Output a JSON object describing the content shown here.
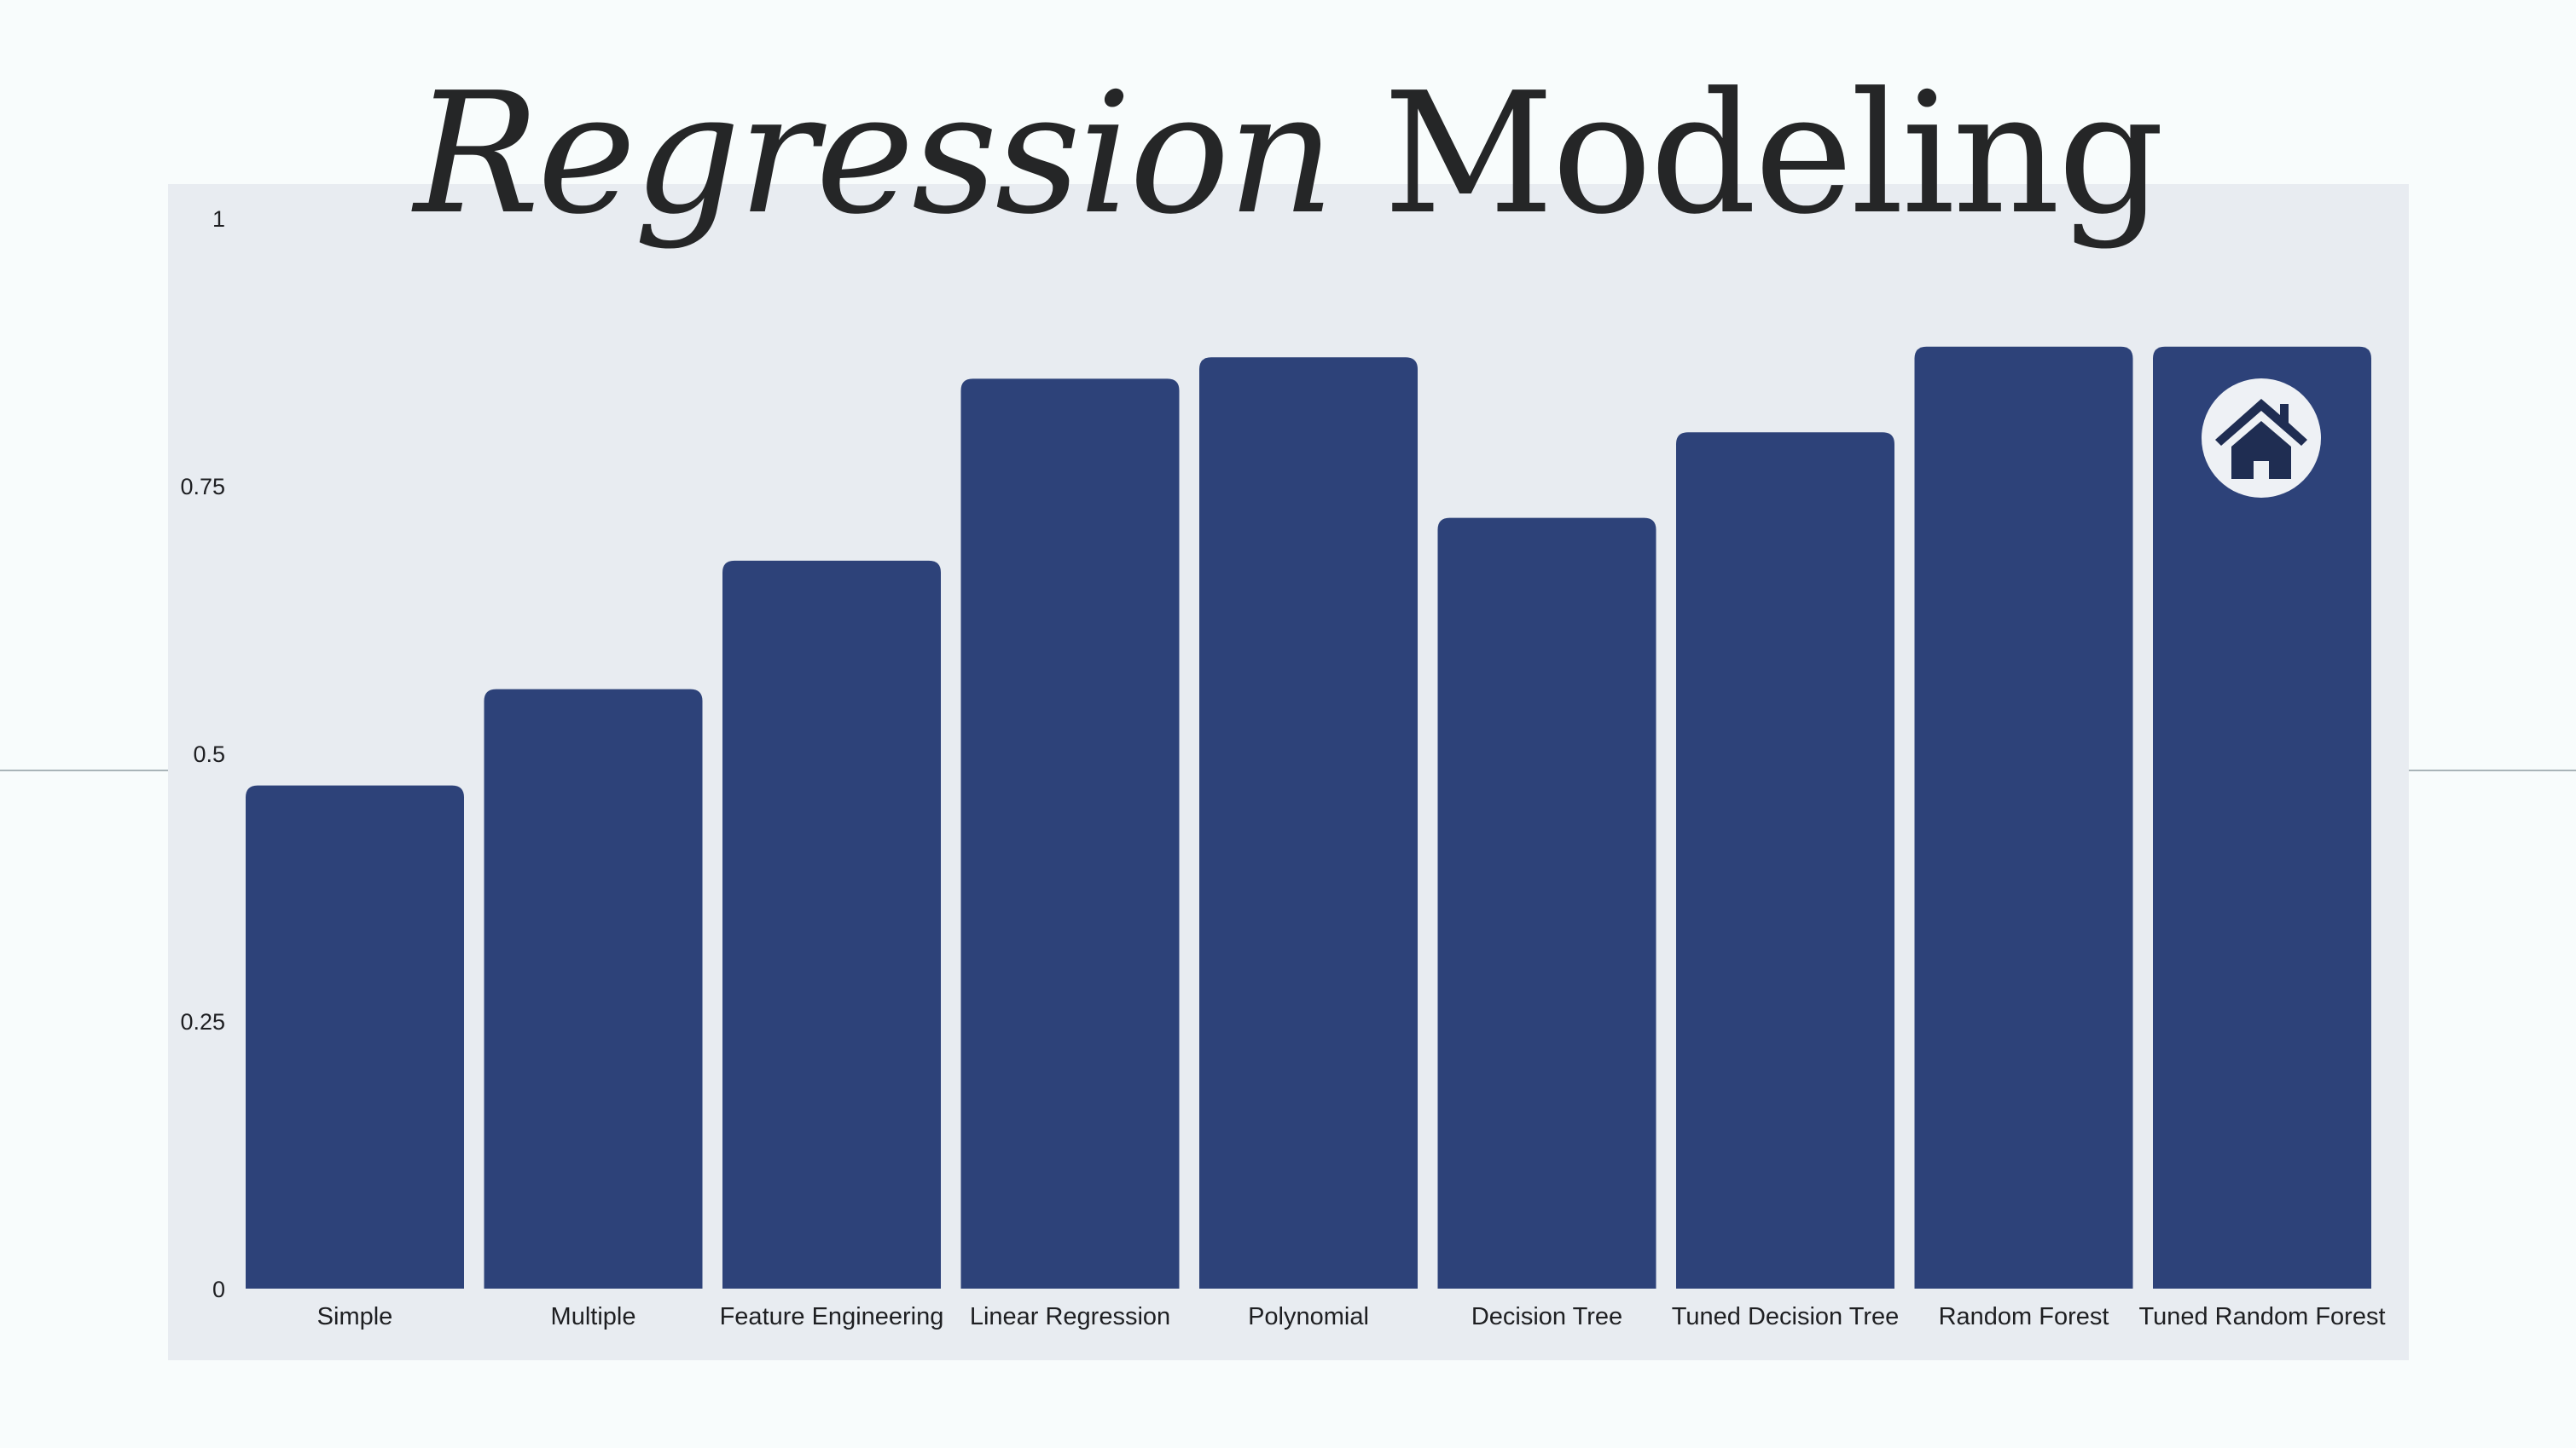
{
  "title": {
    "part1": "Regression",
    "part2": "Modeling"
  },
  "colors": {
    "bar": "#2d4279",
    "panel": "#e8ecf1",
    "background": "#f8fcfc",
    "icon": "#1f2d52"
  },
  "icon": {
    "name": "home-icon",
    "attached_to": "Tuned Random Forest"
  },
  "chart_data": {
    "type": "bar",
    "categories": [
      "Simple",
      "Multiple",
      "Feature Engineering",
      "Linear Regression",
      "Polynomial",
      "Decision Tree",
      "Tuned Decision Tree",
      "Random Forest",
      "Tuned Random Forest"
    ],
    "values": [
      0.47,
      0.56,
      0.68,
      0.85,
      0.87,
      0.72,
      0.8,
      0.88,
      0.88
    ],
    "ylim": [
      0,
      1
    ],
    "yticks": [
      0,
      0.25,
      0.5,
      0.75,
      1
    ],
    "ytick_labels": [
      "0",
      "0.25",
      "0.5",
      "0.75",
      "1"
    ],
    "grid": false,
    "legend": false
  }
}
